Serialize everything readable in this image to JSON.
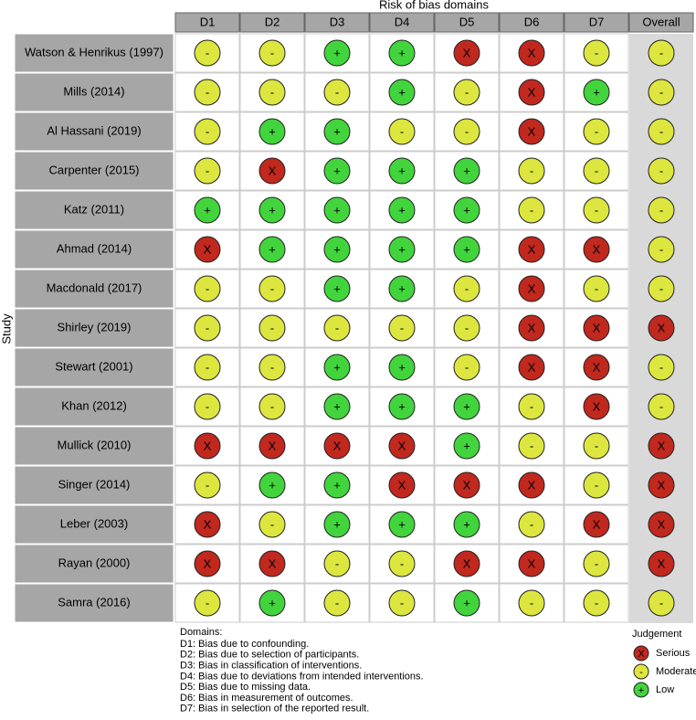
{
  "title": "Risk of bias domains",
  "y_label": "Study",
  "domains": [
    "D1",
    "D2",
    "D3",
    "D4",
    "D5",
    "D6",
    "D7",
    "Overall"
  ],
  "studies": [
    {
      "name": "Watson & Henrikus (1997)",
      "judgements": [
        "-",
        "-",
        "+",
        "+",
        "X",
        "X",
        "-",
        "-"
      ]
    },
    {
      "name": "Mills (2014)",
      "judgements": [
        "-",
        "-",
        "-",
        "+",
        "-",
        "X",
        "+",
        "-"
      ]
    },
    {
      "name": "Al Hassani (2019)",
      "judgements": [
        "-",
        "+",
        "+",
        "-",
        "-",
        "X",
        "-",
        "-"
      ]
    },
    {
      "name": "Carpenter (2015)",
      "judgements": [
        "-",
        "X",
        "+",
        "+",
        "+",
        "-",
        "-",
        "-"
      ]
    },
    {
      "name": "Katz (2011)",
      "judgements": [
        "+",
        "+",
        "+",
        "+",
        "+",
        "-",
        "-",
        "-"
      ]
    },
    {
      "name": "Ahmad (2014)",
      "judgements": [
        "X",
        "+",
        "+",
        "+",
        "+",
        "X",
        "X",
        "-"
      ]
    },
    {
      "name": "Macdonald (2017)",
      "judgements": [
        "-",
        "-",
        "+",
        "+",
        "-",
        "X",
        "-",
        "-"
      ]
    },
    {
      "name": "Shirley (2019)",
      "judgements": [
        "-",
        "-",
        "-",
        "-",
        "-",
        "X",
        "X",
        "X"
      ]
    },
    {
      "name": "Stewart (2001)",
      "judgements": [
        "-",
        "-",
        "+",
        "+",
        "-",
        "X",
        "X",
        "-"
      ]
    },
    {
      "name": "Khan (2012)",
      "judgements": [
        "-",
        "-",
        "+",
        "+",
        "+",
        "-",
        "X",
        "-"
      ]
    },
    {
      "name": "Mullick (2010)",
      "judgements": [
        "X",
        "X",
        "X",
        "X",
        "+",
        "-",
        "-",
        "X"
      ]
    },
    {
      "name": "Singer (2014)",
      "judgements": [
        "-",
        "+",
        "+",
        "X",
        "X",
        "X",
        "-",
        "X"
      ]
    },
    {
      "name": "Leber (2003)",
      "judgements": [
        "X",
        "-",
        "+",
        "+",
        "+",
        "-",
        "X",
        "X"
      ]
    },
    {
      "name": "Rayan (2000)",
      "judgements": [
        "X",
        "X",
        "-",
        "-",
        "X",
        "X",
        "-",
        "X"
      ]
    },
    {
      "name": "Samra (2016)",
      "judgements": [
        "-",
        "+",
        "-",
        "-",
        "+",
        "-",
        "-",
        "-"
      ]
    }
  ],
  "notes": {
    "title": "Domains:",
    "lines": [
      "D1: Bias due to confounding.",
      "D2: Bias due to selection of participants.",
      "D3: Bias in classification of interventions.",
      "D4: Bias due to deviations from intended interventions.",
      "D5: Bias due to missing data.",
      "D6: Bias in measurement of outcomes.",
      "D7: Bias in selection of the reported result."
    ]
  },
  "legend": {
    "title": "Judgement",
    "items": [
      {
        "symbol": "X",
        "label": "Serious",
        "color": "#c1281e"
      },
      {
        "symbol": "-",
        "label": "Moderate",
        "color": "#dde63f"
      },
      {
        "symbol": "+",
        "label": "Low",
        "color": "#42d43c"
      }
    ]
  }
}
